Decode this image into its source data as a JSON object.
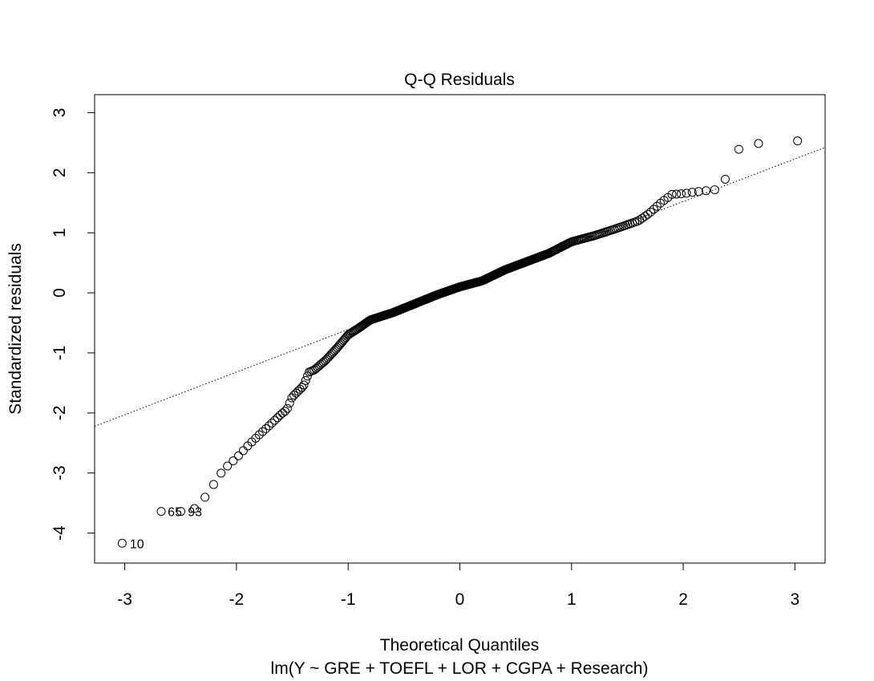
{
  "chart_data": {
    "type": "scatter",
    "title": "Q-Q Residuals",
    "xlabel": "Theoretical Quantiles",
    "ylabel": "Standardized residuals",
    "subtitle": "lm(Y ~ GRE + TOEFL + LOR + CGPA + Research)",
    "xlim": [
      -3.27,
      3.27
    ],
    "ylim": [
      -4.5,
      3.3
    ],
    "x_ticks": [
      -3,
      -2,
      -1,
      0,
      1,
      2,
      3
    ],
    "y_ticks": [
      -4,
      -3,
      -2,
      -1,
      0,
      1,
      2,
      3
    ],
    "x_tick_labels": [
      "-3",
      "-2",
      "-1",
      "0",
      "1",
      "2",
      "3"
    ],
    "y_tick_labels": [
      "-4",
      "-3",
      "-2",
      "-1",
      "0",
      "1",
      "2",
      "3"
    ],
    "n_points": 400,
    "reference_line": {
      "slope": 0.71,
      "intercept": 0.1,
      "style": "dotted"
    },
    "labeled_points": [
      {
        "label": "10",
        "x": -3.02,
        "y": -4.17
      },
      {
        "label": "65",
        "x": -2.68,
        "y": -3.64
      },
      {
        "label": "93",
        "x": -2.5,
        "y": -3.64
      }
    ],
    "quantile_profile": [
      [
        -3.02,
        -4.17
      ],
      [
        -2.68,
        -3.64
      ],
      [
        -2.55,
        -3.63
      ],
      [
        -2.5,
        -3.64
      ],
      [
        -2.4,
        -3.64
      ],
      [
        -2.28,
        -3.4
      ],
      [
        -2.2,
        -3.18
      ],
      [
        -2.12,
        -2.95
      ],
      [
        -2.0,
        -2.75
      ],
      [
        -1.9,
        -2.55
      ],
      [
        -1.8,
        -2.37
      ],
      [
        -1.7,
        -2.2
      ],
      [
        -1.6,
        -2.02
      ],
      [
        -1.55,
        -1.95
      ],
      [
        -1.5,
        -1.73
      ],
      [
        -1.4,
        -1.55
      ],
      [
        -1.35,
        -1.32
      ],
      [
        -1.3,
        -1.28
      ],
      [
        -1.2,
        -1.12
      ],
      [
        -1.1,
        -0.92
      ],
      [
        -1.0,
        -0.7
      ],
      [
        -0.9,
        -0.58
      ],
      [
        -0.8,
        -0.45
      ],
      [
        -0.6,
        -0.33
      ],
      [
        -0.4,
        -0.18
      ],
      [
        -0.2,
        -0.03
      ],
      [
        0.0,
        0.1
      ],
      [
        0.2,
        0.2
      ],
      [
        0.4,
        0.38
      ],
      [
        0.6,
        0.52
      ],
      [
        0.8,
        0.66
      ],
      [
        1.0,
        0.85
      ],
      [
        1.2,
        0.95
      ],
      [
        1.4,
        1.07
      ],
      [
        1.6,
        1.2
      ],
      [
        1.7,
        1.33
      ],
      [
        1.8,
        1.5
      ],
      [
        1.9,
        1.64
      ],
      [
        2.0,
        1.65
      ],
      [
        2.1,
        1.68
      ],
      [
        2.2,
        1.7
      ],
      [
        2.3,
        1.72
      ],
      [
        2.38,
        1.9
      ],
      [
        2.5,
        2.4
      ],
      [
        2.68,
        2.49
      ],
      [
        3.02,
        2.53
      ]
    ]
  }
}
